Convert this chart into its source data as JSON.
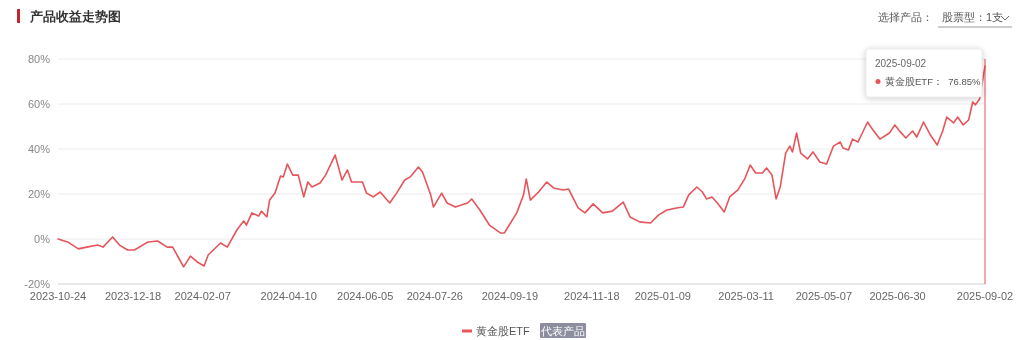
{
  "chart_data": {
    "type": "line",
    "title": "产品收益走势图",
    "x": [
      "2023-10-24",
      "2023-10-31",
      "2023-11-08",
      "2023-11-14",
      "2023-11-22",
      "2023-11-26",
      "2023-12-03",
      "2023-12-08",
      "2023-12-14",
      "2023-12-19",
      "2023-12-29",
      "2024-01-05",
      "2024-01-12",
      "2024-01-16",
      "2024-01-20",
      "2024-01-24",
      "2024-01-29",
      "2024-02-03",
      "2024-02-08",
      "2024-02-11",
      "2024-02-20",
      "2024-02-25",
      "2024-03-03",
      "2024-03-08",
      "2024-03-10",
      "2024-03-14",
      "2024-03-19",
      "2024-03-21",
      "2024-03-25",
      "2024-03-27",
      "2024-03-31",
      "2024-04-04",
      "2024-04-06",
      "2024-04-09",
      "2024-04-13",
      "2024-04-17",
      "2024-04-21",
      "2024-04-24",
      "2024-04-27",
      "2024-05-03",
      "2024-05-07",
      "2024-05-14",
      "2024-05-19",
      "2024-05-23",
      "2024-05-26",
      "2024-06-03",
      "2024-06-06",
      "2024-06-11",
      "2024-06-16",
      "2024-06-23",
      "2024-06-28",
      "2024-07-04",
      "2024-07-08",
      "2024-07-14",
      "2024-07-17",
      "2024-07-23",
      "2024-07-25",
      "2024-07-31",
      "2024-08-04",
      "2024-08-10",
      "2024-08-19",
      "2024-08-22",
      "2024-08-28",
      "2024-09-04",
      "2024-09-12",
      "2024-09-15",
      "2024-09-24",
      "2024-09-29",
      "2024-10-01",
      "2024-10-04",
      "2024-10-10",
      "2024-10-16",
      "2024-10-21",
      "2024-10-28",
      "2024-11-01",
      "2024-11-08",
      "2024-11-13",
      "2024-11-19",
      "2024-11-26",
      "2024-12-03",
      "2024-12-11",
      "2024-12-16",
      "2024-12-23",
      "2024-12-31",
      "2025-01-06",
      "2025-01-12",
      "2025-01-19",
      "2025-01-24",
      "2025-01-28",
      "2025-02-03",
      "2025-02-07",
      "2025-02-10",
      "2025-02-14",
      "2025-02-18",
      "2025-02-23",
      "2025-02-27",
      "2025-03-05",
      "2025-03-10",
      "2025-03-14",
      "2025-03-18",
      "2025-03-23",
      "2025-03-26",
      "2025-03-30",
      "2025-04-02",
      "2025-04-05",
      "2025-04-09",
      "2025-04-12",
      "2025-04-14",
      "2025-04-17",
      "2025-04-20",
      "2025-04-25",
      "2025-04-29",
      "2025-05-04",
      "2025-05-09",
      "2025-05-14",
      "2025-05-19",
      "2025-05-21",
      "2025-05-25",
      "2025-05-28",
      "2025-06-01",
      "2025-06-08",
      "2025-06-12",
      "2025-06-17",
      "2025-06-24",
      "2025-06-28",
      "2025-07-02",
      "2025-07-06",
      "2025-07-11",
      "2025-07-14",
      "2025-07-19",
      "2025-07-24",
      "2025-07-29",
      "2025-08-02",
      "2025-08-05",
      "2025-08-10",
      "2025-08-13",
      "2025-08-17",
      "2025-08-21",
      "2025-08-24",
      "2025-08-26",
      "2025-08-29",
      "2025-09-02"
    ],
    "series": [
      {
        "name": "黄金股ETF",
        "color": "#e5555b",
        "values": [
          0,
          -1.3,
          -4.4,
          -3.6,
          -2.7,
          -3.6,
          0.9,
          -2.7,
          -4.9,
          -4.9,
          -1.3,
          -0.9,
          -3.6,
          -3.6,
          -8,
          -12.4,
          -7.6,
          -10.2,
          -12,
          -7.1,
          -1.8,
          -3.6,
          4,
          8,
          6.2,
          11.6,
          10.2,
          12.4,
          9.8,
          17.3,
          20.4,
          28,
          27.6,
          33.3,
          28.4,
          28.4,
          18.7,
          25.3,
          23.1,
          24.9,
          28.4,
          37.3,
          26.2,
          30.7,
          25.3,
          25.3,
          20.4,
          18.7,
          20.9,
          16,
          20.4,
          26.2,
          27.6,
          32,
          29.8,
          19.6,
          14.2,
          20.4,
          16,
          14.2,
          16,
          17.8,
          12.9,
          6.2,
          2.7,
          2.7,
          11.6,
          19.6,
          26.7,
          17.3,
          20.9,
          25.3,
          22.7,
          21.8,
          22.2,
          13.8,
          11.6,
          15.6,
          11.6,
          12.4,
          16.4,
          9.8,
          7.6,
          7.1,
          10.7,
          12.9,
          13.8,
          14.2,
          19.6,
          23.1,
          20.9,
          17.8,
          18.7,
          16,
          12,
          18.7,
          21.8,
          26.7,
          32.9,
          29.3,
          29.3,
          31.6,
          28.4,
          17.8,
          23.1,
          38.2,
          41.3,
          38.7,
          47.1,
          38.2,
          35.6,
          38.7,
          34.2,
          33.3,
          41.3,
          43.1,
          40.4,
          39.6,
          44.4,
          43.1,
          52,
          48.4,
          44.4,
          47.1,
          50.7,
          47.6,
          44.9,
          48,
          45.3,
          52,
          46.2,
          41.8,
          48,
          54.2,
          51.6,
          54.2,
          50.7,
          52.9,
          60.9,
          59.6,
          62.2,
          76.85
        ]
      }
    ],
    "xlim": [
      "2023-10-24",
      "2025-09-02"
    ],
    "xticks": [
      "2023-10-24",
      "2023-12-18",
      "2024-02-07",
      "2024-04-10",
      "2024-06-05",
      "2024-07-26",
      "2024-09-19",
      "2024-11-18",
      "2025-01-09",
      "2025-03-11",
      "2025-05-07",
      "2025-06-30",
      "2025-09-02"
    ],
    "ylim": [
      -20,
      80
    ],
    "yticks": [
      {
        "value": -20,
        "label": "-20%"
      },
      {
        "value": 0,
        "label": "0%"
      },
      {
        "value": 20,
        "label": "20%"
      },
      {
        "value": 40,
        "label": "40%"
      },
      {
        "value": 60,
        "label": "60%"
      },
      {
        "value": 80,
        "label": "80%"
      }
    ],
    "grid": "y",
    "legend": "bottom",
    "line_style": "solid",
    "ref_lines": [
      {
        "axis": "x",
        "value": "2025-09-02",
        "color": "#e5555b"
      }
    ],
    "annotations": [
      "选择产品：",
      "股票型：1支",
      "代表产品",
      "2025-09-02",
      "黄金股ETF：  76.85%"
    ]
  }
}
